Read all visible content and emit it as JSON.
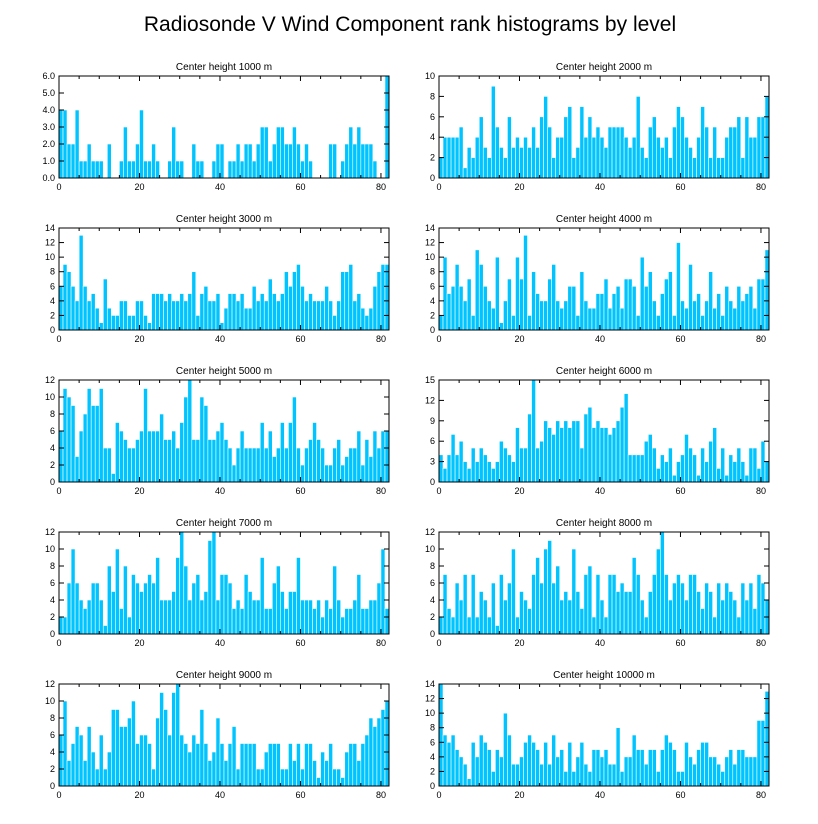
{
  "figure_title": "Radiosonde V Wind Component rank histograms by level",
  "chart_data": [
    {
      "type": "bar",
      "title": "Center height 1000 m",
      "xlim": [
        0,
        82
      ],
      "ylim": [
        0,
        6
      ],
      "xticks": [
        "0",
        "20",
        "40",
        "60",
        "80"
      ],
      "yticks": [
        "0.0",
        "1.0",
        "2.0",
        "3.0",
        "4.0",
        "5.0",
        "6.0"
      ],
      "values": [
        4,
        4,
        2,
        2,
        4,
        1,
        1,
        2,
        1,
        1,
        1,
        0,
        2,
        0,
        0,
        1,
        3,
        1,
        1,
        2,
        4,
        1,
        1,
        2,
        1,
        0,
        0,
        1,
        3,
        1,
        1,
        0,
        0,
        2,
        1,
        1,
        0,
        0,
        1,
        2,
        2,
        0,
        1,
        1,
        2,
        1,
        2,
        2,
        1,
        2,
        3,
        3,
        1,
        2,
        3,
        3,
        2,
        2,
        3,
        2,
        1,
        2,
        1,
        0,
        0,
        0,
        0,
        2,
        2,
        0,
        1,
        2,
        3,
        2,
        3,
        2,
        2,
        2,
        1,
        0,
        0,
        6
      ]
    },
    {
      "type": "bar",
      "title": "Center height 2000 m",
      "xlim": [
        0,
        82
      ],
      "ylim": [
        0,
        10
      ],
      "xticks": [
        "0",
        "20",
        "40",
        "60",
        "80"
      ],
      "yticks": [
        "0",
        "2",
        "4",
        "6",
        "8",
        "10"
      ],
      "values": [
        2,
        4,
        4,
        4,
        4,
        5,
        1,
        3,
        2,
        4,
        6,
        3,
        2,
        9,
        5,
        3,
        2,
        6,
        3,
        4,
        3,
        4,
        3,
        5,
        3,
        6,
        8,
        5,
        2,
        4,
        4,
        6,
        7,
        2,
        3,
        7,
        4,
        6,
        4,
        5,
        4,
        3,
        5,
        5,
        5,
        5,
        4,
        3,
        4,
        8,
        3,
        2,
        5,
        6,
        4,
        3,
        4,
        2,
        5,
        7,
        6,
        4,
        3,
        2,
        4,
        7,
        5,
        2,
        5,
        2,
        2,
        4,
        5,
        5,
        6,
        2,
        6,
        4,
        4,
        6,
        6,
        8
      ]
    },
    {
      "type": "bar",
      "title": "Center height 3000 m",
      "xlim": [
        0,
        82
      ],
      "ylim": [
        0,
        14
      ],
      "xticks": [
        "0",
        "20",
        "40",
        "60",
        "80"
      ],
      "yticks": [
        "0",
        "2",
        "4",
        "6",
        "8",
        "10",
        "12",
        "14"
      ],
      "values": [
        6,
        9,
        8,
        6,
        4,
        13,
        6,
        4,
        5,
        3,
        1,
        7,
        3,
        2,
        2,
        4,
        4,
        2,
        2,
        4,
        4,
        2,
        1,
        5,
        5,
        5,
        4,
        5,
        4,
        4,
        5,
        4,
        5,
        8,
        2,
        5,
        6,
        4,
        4,
        5,
        1,
        3,
        5,
        5,
        4,
        5,
        3,
        3,
        6,
        4,
        5,
        4,
        7,
        5,
        4,
        5,
        8,
        6,
        8,
        9,
        6,
        4,
        5,
        4,
        4,
        4,
        6,
        4,
        2,
        4,
        8,
        8,
        9,
        4,
        5,
        3,
        2,
        3,
        6,
        8,
        9,
        9
      ]
    },
    {
      "type": "bar",
      "title": "Center height 4000 m",
      "xlim": [
        0,
        82
      ],
      "ylim": [
        0,
        14
      ],
      "xticks": [
        "0",
        "20",
        "40",
        "60",
        "80"
      ],
      "yticks": [
        "0",
        "2",
        "4",
        "6",
        "8",
        "10",
        "12",
        "14"
      ],
      "values": [
        2,
        10,
        5,
        6,
        9,
        6,
        4,
        7,
        2,
        11,
        9,
        6,
        4,
        3,
        10,
        1,
        4,
        7,
        2,
        10,
        7,
        13,
        2,
        8,
        5,
        4,
        4,
        7,
        9,
        4,
        3,
        4,
        6,
        6,
        2,
        8,
        4,
        3,
        3,
        5,
        5,
        7,
        3,
        5,
        6,
        3,
        7,
        7,
        6,
        2,
        10,
        6,
        8,
        4,
        2,
        5,
        7,
        8,
        2,
        12,
        4,
        3,
        9,
        4,
        5,
        2,
        4,
        8,
        3,
        5,
        2,
        6,
        4,
        3,
        6,
        4,
        5,
        6,
        3,
        7,
        7,
        11
      ]
    },
    {
      "type": "bar",
      "title": "Center height 5000 m",
      "xlim": [
        0,
        82
      ],
      "ylim": [
        0,
        12
      ],
      "xticks": [
        "0",
        "20",
        "40",
        "60",
        "80"
      ],
      "yticks": [
        "0",
        "2",
        "4",
        "6",
        "8",
        "10",
        "12"
      ],
      "values": [
        6,
        11,
        10,
        9,
        3,
        6,
        8,
        11,
        9,
        9,
        11,
        4,
        4,
        1,
        7,
        6,
        5,
        4,
        4,
        5,
        6,
        11,
        6,
        6,
        6,
        8,
        5,
        5,
        6,
        4,
        7,
        10,
        12,
        5,
        5,
        10,
        9,
        5,
        5,
        6,
        7,
        5,
        4,
        2,
        4,
        6,
        4,
        4,
        4,
        4,
        7,
        4,
        6,
        3,
        4,
        7,
        4,
        7,
        10,
        4,
        2,
        4,
        5,
        7,
        5,
        4,
        2,
        2,
        4,
        5,
        2,
        3,
        4,
        4,
        6,
        2,
        5,
        3,
        6,
        4,
        6,
        6
      ]
    },
    {
      "type": "bar",
      "title": "Center height 6000 m",
      "xlim": [
        0,
        82
      ],
      "ylim": [
        0,
        15
      ],
      "xticks": [
        "0",
        "20",
        "40",
        "60",
        "80"
      ],
      "yticks": [
        "0",
        "3",
        "6",
        "9",
        "12",
        "15"
      ],
      "values": [
        4,
        2,
        4,
        7,
        4,
        6,
        3,
        2,
        5,
        3,
        5,
        4,
        3,
        2,
        3,
        6,
        5,
        4,
        3,
        8,
        5,
        5,
        10,
        15,
        5,
        6,
        9,
        8,
        7,
        9,
        8,
        9,
        8,
        9,
        9,
        5,
        10,
        11,
        8,
        9,
        8,
        8,
        7,
        8,
        9,
        11,
        13,
        4,
        4,
        4,
        4,
        6,
        7,
        5,
        2,
        4,
        3,
        5,
        1,
        3,
        4,
        7,
        5,
        4,
        1,
        5,
        3,
        6,
        8,
        2,
        5,
        1,
        4,
        3,
        5,
        3,
        1,
        5,
        5,
        2,
        6,
        3
      ]
    },
    {
      "type": "bar",
      "title": "Center height 7000 m",
      "xlim": [
        0,
        82
      ],
      "ylim": [
        0,
        12
      ],
      "xticks": [
        "0",
        "20",
        "40",
        "60",
        "80"
      ],
      "yticks": [
        "0",
        "2",
        "4",
        "6",
        "8",
        "10",
        "12"
      ],
      "values": [
        2,
        2,
        6,
        10,
        6,
        4,
        3,
        4,
        6,
        6,
        4,
        1,
        8,
        5,
        10,
        3,
        8,
        2,
        7,
        6,
        5,
        6,
        7,
        6,
        9,
        4,
        4,
        4,
        5,
        9,
        12,
        8,
        4,
        6,
        7,
        4,
        5,
        11,
        12,
        4,
        7,
        7,
        6,
        3,
        4,
        3,
        7,
        5,
        4,
        4,
        9,
        3,
        3,
        6,
        8,
        5,
        3,
        5,
        5,
        9,
        4,
        4,
        4,
        3,
        4,
        2,
        4,
        3,
        8,
        4,
        2,
        3,
        3,
        4,
        7,
        3,
        3,
        4,
        4,
        6,
        10,
        3
      ]
    },
    {
      "type": "bar",
      "title": "Center height 8000 m",
      "xlim": [
        0,
        82
      ],
      "ylim": [
        0,
        12
      ],
      "xticks": [
        "0",
        "20",
        "40",
        "60",
        "80"
      ],
      "yticks": [
        "0",
        "2",
        "4",
        "6",
        "8",
        "10",
        "12"
      ],
      "values": [
        2,
        7,
        3,
        2,
        6,
        4,
        7,
        2,
        7,
        2,
        5,
        4,
        2,
        6,
        1,
        7,
        4,
        6,
        10,
        2,
        5,
        4,
        3,
        7,
        9,
        6,
        10,
        11,
        6,
        8,
        4,
        5,
        4,
        10,
        5,
        3,
        7,
        8,
        2,
        7,
        4,
        2,
        7,
        7,
        5,
        6,
        5,
        5,
        9,
        7,
        4,
        2,
        5,
        7,
        10,
        12,
        7,
        4,
        6,
        7,
        6,
        4,
        7,
        7,
        5,
        3,
        6,
        5,
        2,
        6,
        4,
        6,
        5,
        4,
        2,
        6,
        4,
        6,
        3,
        7,
        6,
        4
      ]
    },
    {
      "type": "bar",
      "title": "Center height 9000 m",
      "xlim": [
        0,
        82
      ],
      "ylim": [
        0,
        12
      ],
      "xticks": [
        "0",
        "20",
        "40",
        "60",
        "80"
      ],
      "yticks": [
        "0",
        "2",
        "4",
        "6",
        "8",
        "10",
        "12"
      ],
      "values": [
        6,
        10,
        3,
        5,
        7,
        6,
        3,
        7,
        4,
        2,
        6,
        2,
        4,
        9,
        9,
        7,
        7,
        8,
        10,
        5,
        6,
        6,
        5,
        2,
        8,
        11,
        9,
        6,
        11,
        12,
        6,
        5,
        4,
        6,
        5,
        9,
        5,
        3,
        4,
        8,
        5,
        3,
        5,
        7,
        2,
        5,
        5,
        5,
        5,
        2,
        2,
        4,
        5,
        5,
        5,
        2,
        2,
        5,
        3,
        5,
        2,
        5,
        5,
        3,
        1,
        4,
        3,
        5,
        2,
        2,
        1,
        4,
        5,
        5,
        3,
        5,
        6,
        8,
        7,
        8,
        9,
        10
      ]
    },
    {
      "type": "bar",
      "title": "Center height 10000 m",
      "xlim": [
        0,
        82
      ],
      "ylim": [
        0,
        14
      ],
      "xticks": [
        "0",
        "20",
        "40",
        "60",
        "80"
      ],
      "yticks": [
        "0",
        "2",
        "4",
        "6",
        "8",
        "10",
        "12",
        "14"
      ],
      "values": [
        14,
        7,
        6,
        7,
        5,
        4,
        3,
        1,
        6,
        4,
        7,
        6,
        5,
        2,
        5,
        4,
        10,
        7,
        3,
        3,
        4,
        6,
        7,
        6,
        5,
        3,
        6,
        3,
        7,
        4,
        5,
        2,
        6,
        2,
        4,
        6,
        3,
        2,
        5,
        5,
        4,
        5,
        3,
        3,
        8,
        2,
        4,
        4,
        7,
        5,
        5,
        3,
        5,
        5,
        2,
        5,
        7,
        6,
        5,
        2,
        2,
        6,
        4,
        3,
        5,
        6,
        6,
        4,
        4,
        3,
        2,
        4,
        5,
        3,
        5,
        5,
        4,
        4,
        4,
        9,
        9,
        13
      ]
    }
  ]
}
